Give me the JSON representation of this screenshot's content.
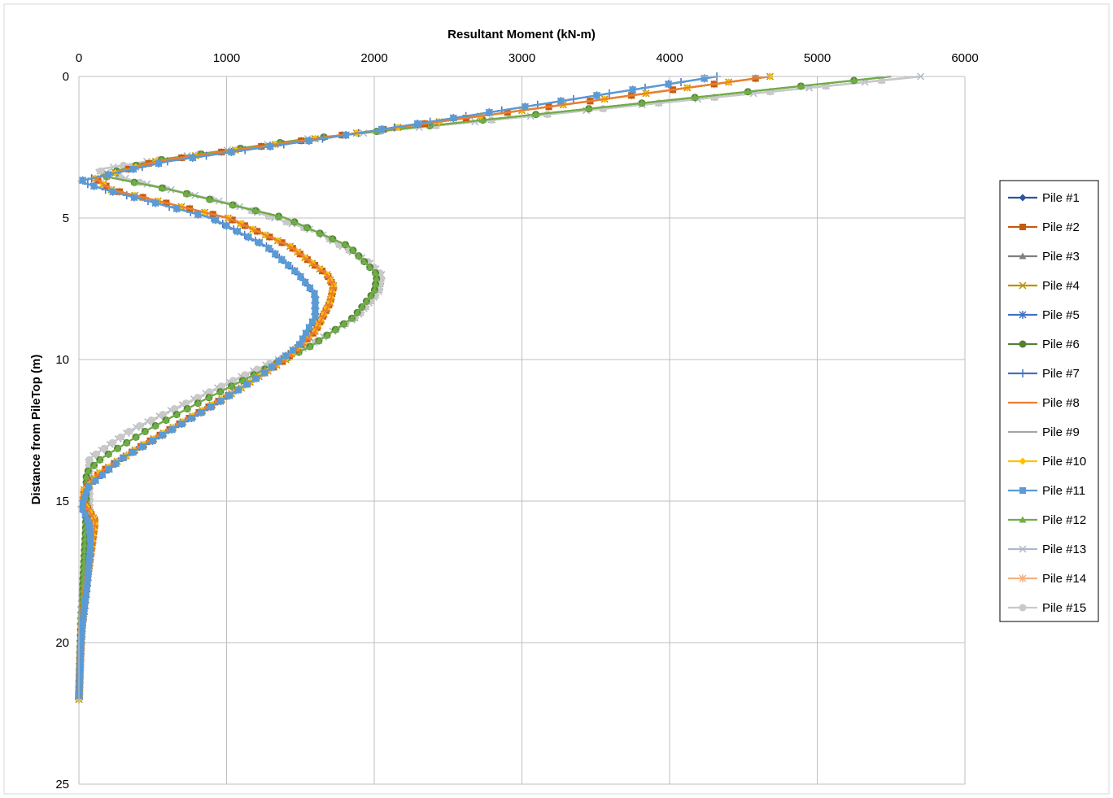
{
  "chart_data": {
    "type": "scatter",
    "xlabel": "Resultant Moment (kN-m)",
    "ylabel": "Distance from PileTop (m)",
    "xlim": [
      0,
      6000
    ],
    "ylim": [
      0,
      25
    ],
    "x_ticks": [
      "0",
      "1000",
      "2000",
      "3000",
      "4000",
      "5000",
      "6000"
    ],
    "y_ticks": [
      "0",
      "5",
      "10",
      "15",
      "20",
      "25"
    ],
    "x_axis_position": "top",
    "y_axis_inverted": true,
    "grid": true,
    "legend_position": "right",
    "profiles": {
      "A": [
        [
          0,
          4680
        ],
        [
          2.2,
          1600
        ],
        [
          3.0,
          520
        ],
        [
          3.6,
          110
        ],
        [
          4.0,
          220
        ],
        [
          5.0,
          1010
        ],
        [
          6.0,
          1430
        ],
        [
          7.0,
          1680
        ],
        [
          7.4,
          1725
        ],
        [
          8.0,
          1700
        ],
        [
          9.0,
          1600
        ],
        [
          10.0,
          1400
        ],
        [
          11.0,
          1100
        ],
        [
          12.0,
          770
        ],
        [
          13.0,
          440
        ],
        [
          14.0,
          140
        ],
        [
          14.6,
          35
        ],
        [
          15.0,
          30
        ],
        [
          15.7,
          110
        ],
        [
          16.5,
          90
        ],
        [
          18.0,
          50
        ],
        [
          19.5,
          20
        ],
        [
          20.5,
          10
        ],
        [
          22.0,
          0
        ]
      ],
      "B": [
        [
          0,
          4320
        ],
        [
          2.2,
          1650
        ],
        [
          3.0,
          600
        ],
        [
          3.7,
          0
        ],
        [
          4.0,
          180
        ],
        [
          5.0,
          900
        ],
        [
          6.0,
          1270
        ],
        [
          7.0,
          1490
        ],
        [
          7.7,
          1600
        ],
        [
          8.5,
          1600
        ],
        [
          9.5,
          1490
        ],
        [
          10.5,
          1250
        ],
        [
          11.5,
          950
        ],
        [
          12.5,
          620
        ],
        [
          13.5,
          290
        ],
        [
          14.5,
          60
        ],
        [
          15.2,
          20
        ],
        [
          15.8,
          70
        ],
        [
          16.5,
          80
        ],
        [
          18.0,
          55
        ],
        [
          19.5,
          20
        ],
        [
          20.5,
          10
        ],
        [
          22.0,
          0
        ]
      ],
      "C": [
        [
          0,
          5500
        ],
        [
          2.2,
          1550
        ],
        [
          3.0,
          480
        ],
        [
          3.5,
          150
        ],
        [
          4.0,
          620
        ],
        [
          5.0,
          1400
        ],
        [
          6.0,
          1830
        ],
        [
          7.0,
          2020
        ],
        [
          7.6,
          2000
        ],
        [
          8.5,
          1860
        ],
        [
          9.5,
          1580
        ],
        [
          10.5,
          1200
        ],
        [
          11.5,
          820
        ],
        [
          12.5,
          460
        ],
        [
          13.5,
          150
        ],
        [
          14.0,
          50
        ],
        [
          15.0,
          50
        ],
        [
          16.0,
          45
        ],
        [
          18.0,
          25
        ],
        [
          20.0,
          10
        ],
        [
          22.0,
          0
        ]
      ],
      "D": [
        [
          0,
          5700
        ],
        [
          2.2,
          1550
        ],
        [
          3.0,
          460
        ],
        [
          3.3,
          120
        ],
        [
          3.7,
          380
        ],
        [
          4.5,
          1030
        ],
        [
          5.5,
          1620
        ],
        [
          6.5,
          1950
        ],
        [
          7.0,
          2050
        ],
        [
          7.6,
          2030
        ],
        [
          8.5,
          1880
        ],
        [
          9.5,
          1560
        ],
        [
          10.5,
          1140
        ],
        [
          11.5,
          740
        ],
        [
          12.5,
          350
        ],
        [
          13.5,
          70
        ],
        [
          14.5,
          70
        ],
        [
          15.5,
          70
        ],
        [
          17.0,
          40
        ],
        [
          19.0,
          15
        ],
        [
          22.0,
          0
        ]
      ]
    },
    "series": [
      {
        "name": "Pile #1",
        "profile": "A",
        "color": "#2E5597",
        "marker": "diamond"
      },
      {
        "name": "Pile #2",
        "profile": "A",
        "color": "#C55A11",
        "marker": "square"
      },
      {
        "name": "Pile #3",
        "profile": "D",
        "color": "#7F7F7F",
        "marker": "triangle"
      },
      {
        "name": "Pile #4",
        "profile": "A",
        "color": "#BF9000",
        "marker": "x"
      },
      {
        "name": "Pile #5",
        "profile": "B",
        "color": "#4472C4",
        "marker": "star"
      },
      {
        "name": "Pile #6",
        "profile": "C",
        "color": "#548235",
        "marker": "circle"
      },
      {
        "name": "Pile #7",
        "profile": "B",
        "color": "#4472C4",
        "marker": "plus"
      },
      {
        "name": "Pile #8",
        "profile": "A",
        "color": "#ED7D31",
        "marker": "dash"
      },
      {
        "name": "Pile #9",
        "profile": "D",
        "color": "#A5A5A5",
        "marker": "dash"
      },
      {
        "name": "Pile #10",
        "profile": "A",
        "color": "#FFC000",
        "marker": "diamond"
      },
      {
        "name": "Pile #11",
        "profile": "B",
        "color": "#5B9BD5",
        "marker": "square"
      },
      {
        "name": "Pile #12",
        "profile": "C",
        "color": "#70AD47",
        "marker": "triangle"
      },
      {
        "name": "Pile #13",
        "profile": "D",
        "color": "#ADB9CA",
        "marker": "x"
      },
      {
        "name": "Pile #14",
        "profile": "A",
        "color": "#F4B183",
        "marker": "star"
      },
      {
        "name": "Pile #15",
        "profile": "D",
        "color": "#C9C9C9",
        "marker": "circle"
      }
    ]
  }
}
